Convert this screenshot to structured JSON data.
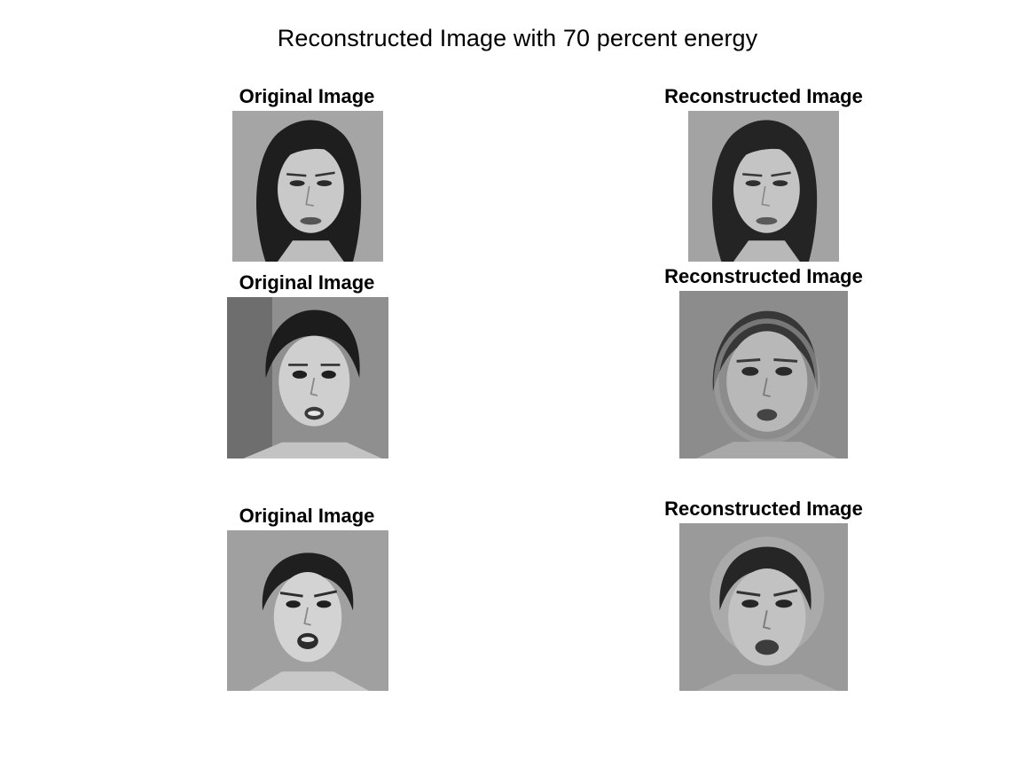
{
  "figure": {
    "title": "Reconstructed Image with 70 percent energy"
  },
  "panels": [
    {
      "title": "Original Image",
      "image": "face-photo-original-1"
    },
    {
      "title": "Reconstructed Image",
      "image": "face-photo-reconstructed-1"
    },
    {
      "title": "Original Image",
      "image": "face-photo-original-2"
    },
    {
      "title": "Reconstructed Image",
      "image": "face-photo-reconstructed-2"
    },
    {
      "title": "Original Image",
      "image": "face-photo-original-3"
    },
    {
      "title": "Reconstructed Image",
      "image": "face-photo-reconstructed-3"
    }
  ]
}
